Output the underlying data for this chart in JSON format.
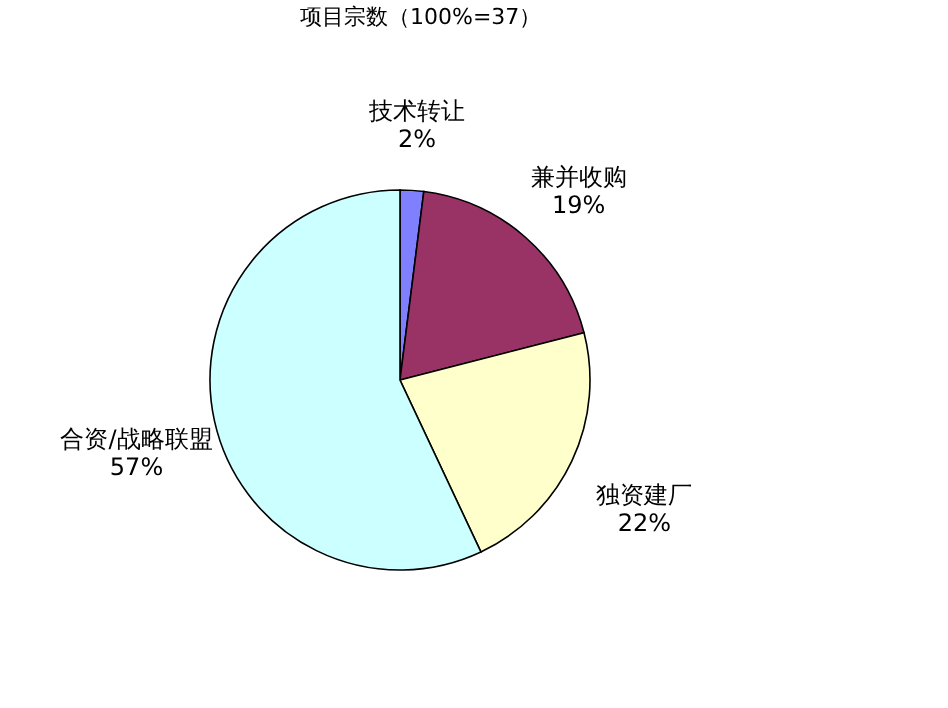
{
  "chart_data": {
    "type": "pie",
    "title": "项目宗数（100%=37）",
    "categories": [
      "技术转让",
      "兼并收购",
      "独资建厂",
      "合资/战略联盟"
    ],
    "values": [
      2,
      19,
      22,
      57
    ],
    "value_labels": [
      "2%",
      "19%",
      "22%",
      "57%"
    ],
    "colors": [
      "#8080ff",
      "#993366",
      "#ffffcc",
      "#ccffff"
    ]
  }
}
